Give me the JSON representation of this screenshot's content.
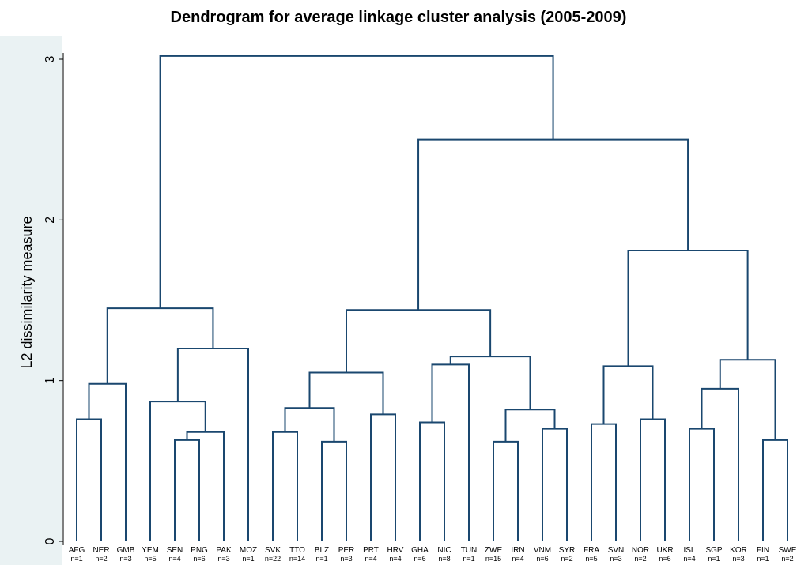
{
  "chart_data": {
    "type": "dendrogram",
    "title": "Dendrogram for average linkage cluster analysis (2005-2009)",
    "y_label": "L2 dissimilarity measure",
    "color": "#1a476f",
    "ylim": [
      0,
      3
    ],
    "yticks": [
      0,
      1,
      2,
      3
    ],
    "leaves": [
      {
        "label": "AFG",
        "n": "n=1"
      },
      {
        "label": "NER",
        "n": "n=2"
      },
      {
        "label": "GMB",
        "n": "n=3"
      },
      {
        "label": "YEM",
        "n": "n=5"
      },
      {
        "label": "SEN",
        "n": "n=4"
      },
      {
        "label": "PNG",
        "n": "n=6"
      },
      {
        "label": "PAK",
        "n": "n=3"
      },
      {
        "label": "MOZ",
        "n": "n=1"
      },
      {
        "label": "SVK",
        "n": "n=22"
      },
      {
        "label": "TTO",
        "n": "n=14"
      },
      {
        "label": "BLZ",
        "n": "n=1"
      },
      {
        "label": "PER",
        "n": "n=3"
      },
      {
        "label": "PRT",
        "n": "n=4"
      },
      {
        "label": "HRV",
        "n": "n=4"
      },
      {
        "label": "GHA",
        "n": "n=6"
      },
      {
        "label": "NIC",
        "n": "n=8"
      },
      {
        "label": "TUN",
        "n": "n=1"
      },
      {
        "label": "ZWE",
        "n": "n=15"
      },
      {
        "label": "IRN",
        "n": "n=4"
      },
      {
        "label": "VNM",
        "n": "n=6"
      },
      {
        "label": "SYR",
        "n": "n=2"
      },
      {
        "label": "FRA",
        "n": "n=5"
      },
      {
        "label": "SVN",
        "n": "n=3"
      },
      {
        "label": "NOR",
        "n": "n=2"
      },
      {
        "label": "UKR",
        "n": "n=6"
      },
      {
        "label": "ISL",
        "n": "n=4"
      },
      {
        "label": "SGP",
        "n": "n=1"
      },
      {
        "label": "KOR",
        "n": "n=3"
      },
      {
        "label": "FIN",
        "n": "n=1"
      },
      {
        "label": "SWE",
        "n": "n=2"
      }
    ],
    "merges": [
      [
        0,
        1,
        0.76
      ],
      [
        30,
        2,
        0.98
      ],
      [
        4,
        5,
        0.63
      ],
      [
        32,
        6,
        0.68
      ],
      [
        3,
        33,
        0.87
      ],
      [
        34,
        7,
        1.2
      ],
      [
        31,
        35,
        1.45
      ],
      [
        8,
        9,
        0.68
      ],
      [
        10,
        11,
        0.62
      ],
      [
        37,
        38,
        0.83
      ],
      [
        12,
        13,
        0.79
      ],
      [
        39,
        40,
        1.05
      ],
      [
        14,
        15,
        0.74
      ],
      [
        42,
        16,
        1.1
      ],
      [
        17,
        18,
        0.62
      ],
      [
        19,
        20,
        0.7
      ],
      [
        44,
        45,
        0.82
      ],
      [
        43,
        46,
        1.15
      ],
      [
        41,
        47,
        1.44
      ],
      [
        21,
        22,
        0.73
      ],
      [
        23,
        24,
        0.76
      ],
      [
        49,
        50,
        1.09
      ],
      [
        25,
        26,
        0.7
      ],
      [
        52,
        27,
        0.95
      ],
      [
        28,
        29,
        0.63
      ],
      [
        53,
        54,
        1.13
      ],
      [
        51,
        55,
        1.81
      ],
      [
        48,
        56,
        2.5
      ],
      [
        36,
        57,
        3.02
      ]
    ]
  }
}
